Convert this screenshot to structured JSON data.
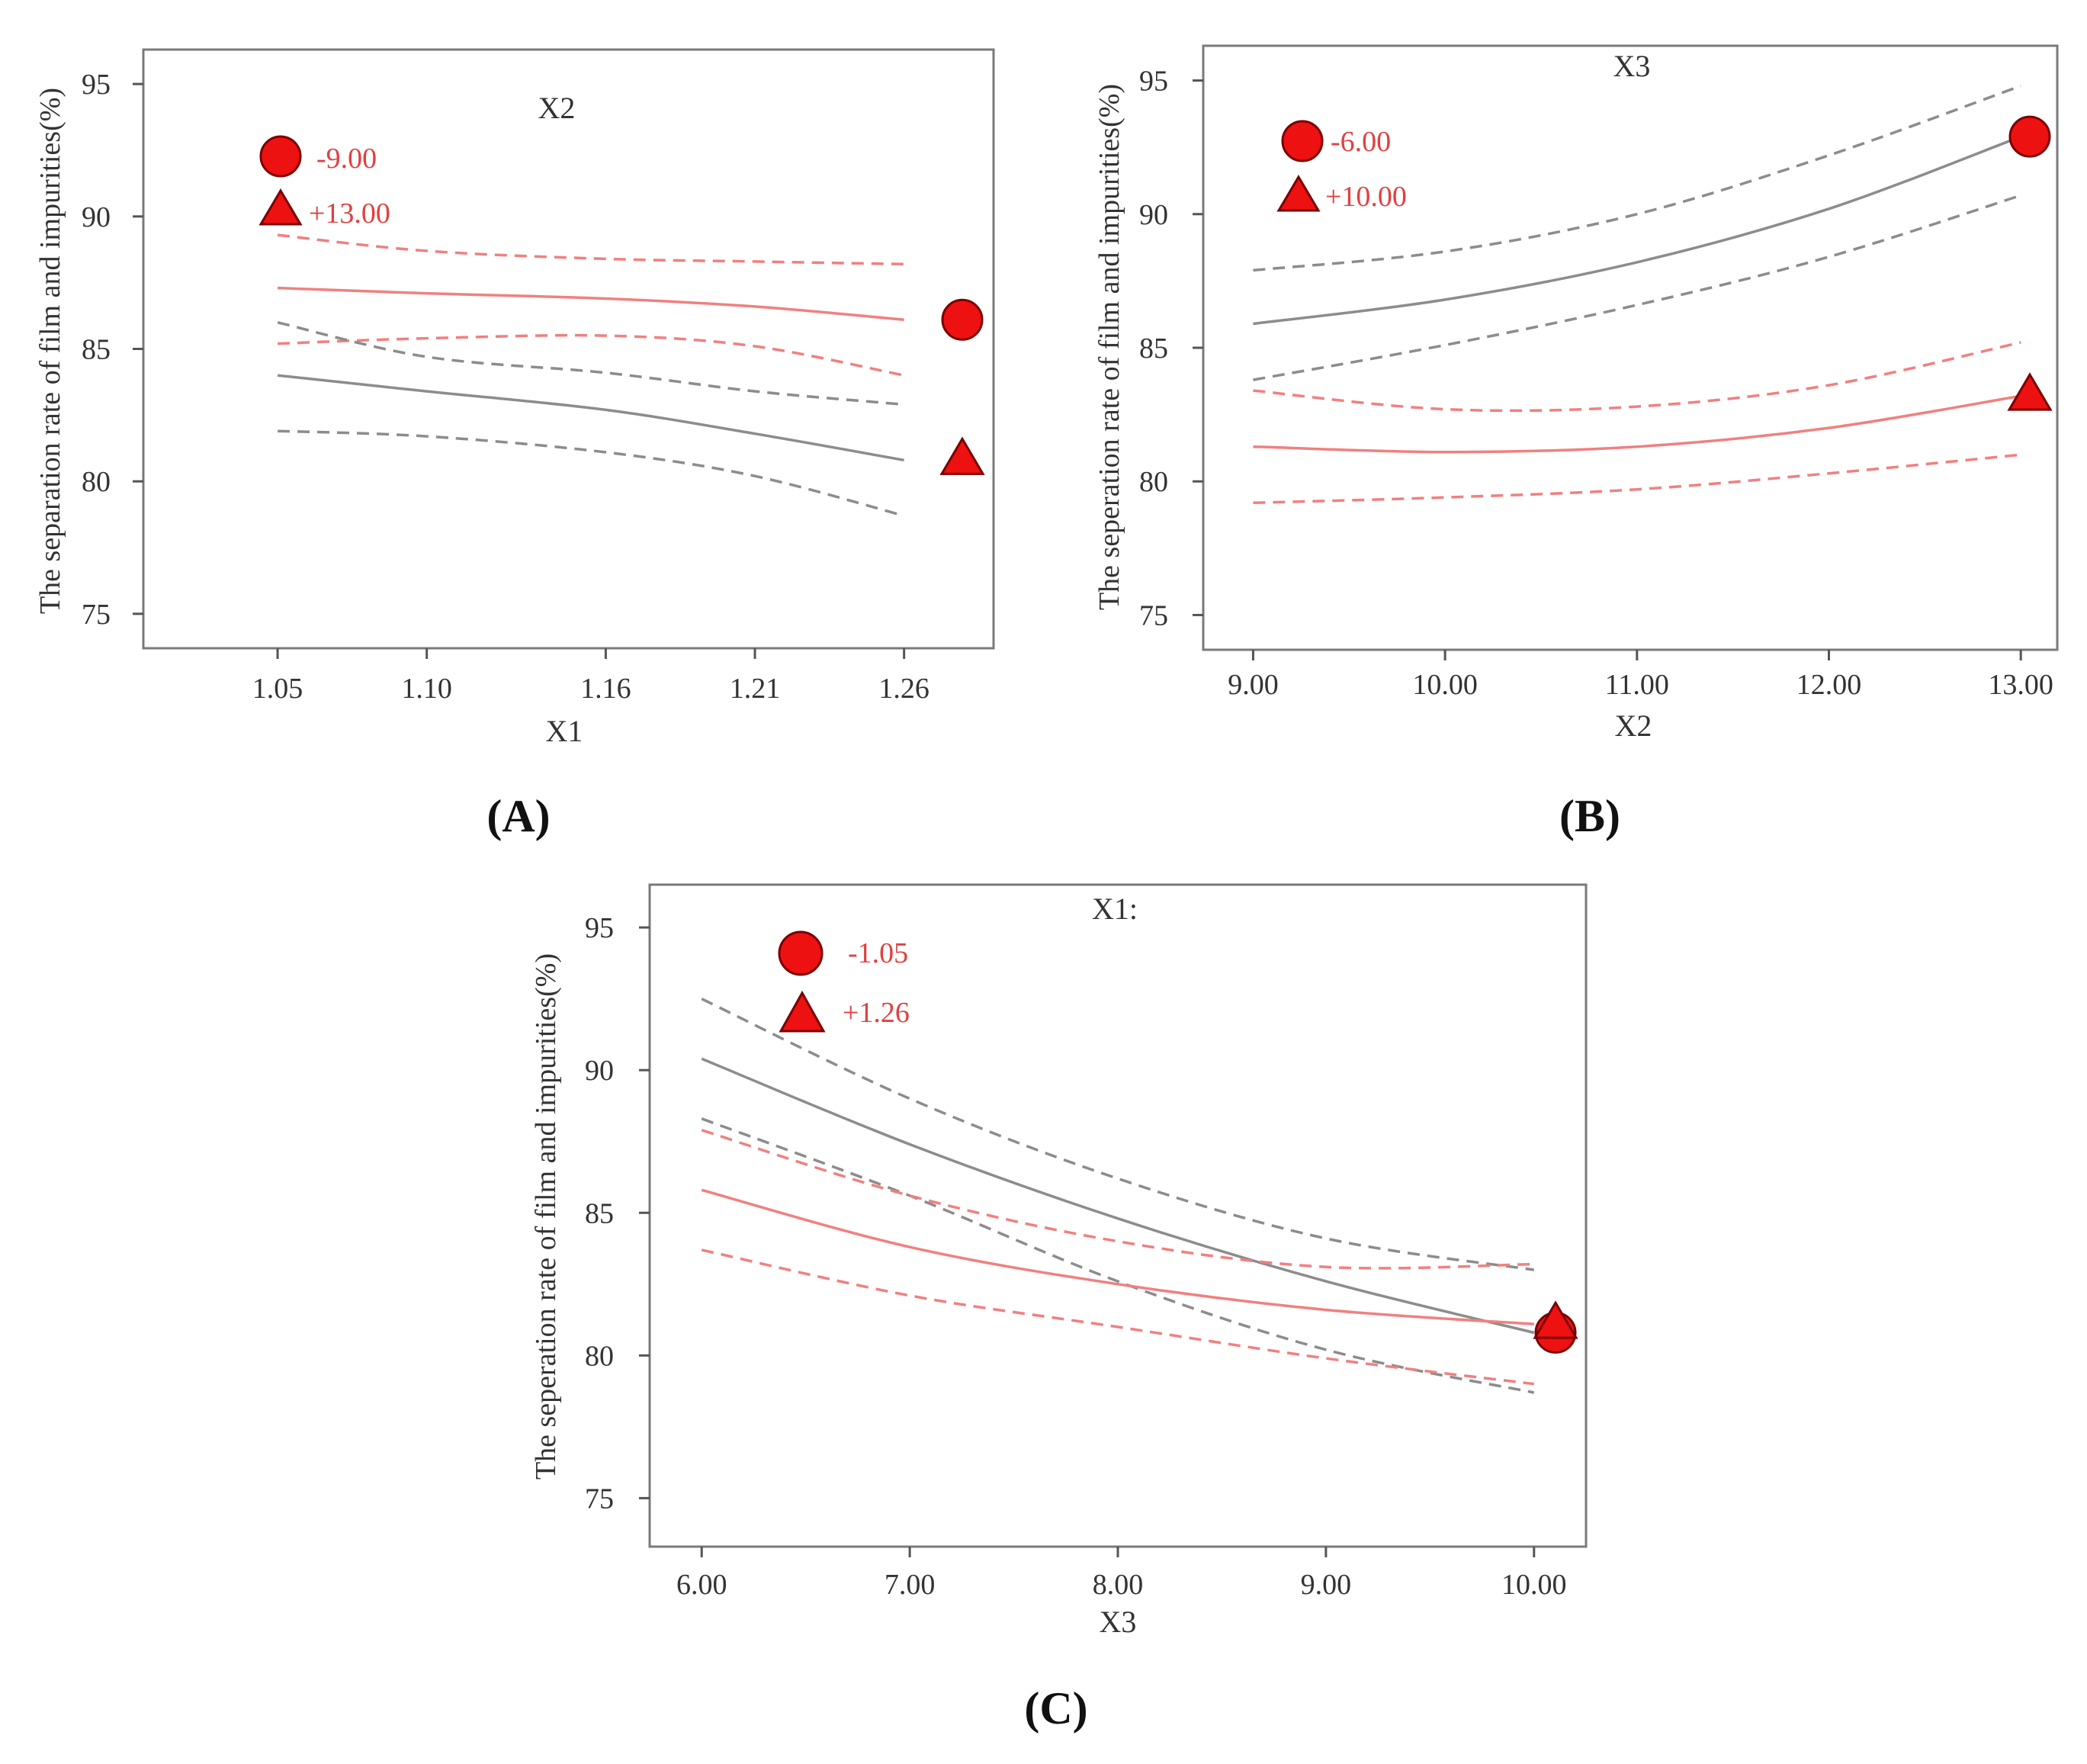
{
  "colors": {
    "grey": "#8c8c8c",
    "red": "#f08080",
    "marker": "#ee1111",
    "legend_text": "#e04040"
  },
  "chart_data": [
    {
      "panel_label": "(A)",
      "type": "line",
      "title": "X2",
      "xlabel": "X1",
      "ylabel": "The separation rate of film and impurities(%)",
      "xlim": [
        1.005,
        1.29
      ],
      "ylim": [
        73.7,
        96.3
      ],
      "xticks": [
        1.05,
        1.1,
        1.16,
        1.21,
        1.26
      ],
      "xtick_labels": [
        "1.05",
        "1.10",
        "1.16",
        "1.21",
        "1.26"
      ],
      "yticks": [
        75,
        80,
        85,
        90,
        95
      ],
      "ytick_labels": [
        "75",
        "80",
        "85",
        "90",
        "95"
      ],
      "legend": [
        {
          "marker": "circle",
          "label": "-9.00",
          "color": "#ee1111"
        },
        {
          "marker": "triangle",
          "label": "+13.00",
          "color": "#ee1111"
        }
      ],
      "series": [
        {
          "name": "-9.00",
          "color": "red",
          "end_marker": "circle",
          "x": [
            1.05,
            1.1,
            1.16,
            1.21,
            1.26
          ],
          "mean": [
            87.3,
            87.1,
            86.9,
            86.6,
            86.1
          ],
          "upper": [
            89.3,
            88.7,
            88.4,
            88.3,
            88.2
          ],
          "lower": [
            85.2,
            85.4,
            85.5,
            85.1,
            84.0
          ]
        },
        {
          "name": "+13.00",
          "color": "grey",
          "end_marker": "triangle",
          "x": [
            1.05,
            1.1,
            1.16,
            1.21,
            1.26
          ],
          "mean": [
            84.0,
            83.4,
            82.7,
            81.8,
            80.8
          ],
          "upper": [
            86.0,
            84.7,
            84.1,
            83.4,
            82.9
          ],
          "lower": [
            81.9,
            81.7,
            81.1,
            80.2,
            78.7
          ]
        }
      ]
    },
    {
      "panel_label": "(B)",
      "type": "line",
      "title": "X3",
      "xlabel": "X2",
      "ylabel": "The seperation rate of film and impurities(%)",
      "xlim": [
        8.74,
        13.19
      ],
      "ylim": [
        73.7,
        96.3
      ],
      "xticks": [
        9,
        10,
        11,
        12,
        13
      ],
      "xtick_labels": [
        "9.00",
        "10.00",
        "11.00",
        "12.00",
        "13.00"
      ],
      "yticks": [
        75,
        80,
        85,
        90,
        95
      ],
      "ytick_labels": [
        "75",
        "80",
        "85",
        "90",
        "95"
      ],
      "legend": [
        {
          "marker": "circle",
          "label": "-6.00",
          "color": "#ee1111"
        },
        {
          "marker": "triangle",
          "label": "+10.00",
          "color": "#ee1111"
        }
      ],
      "series": [
        {
          "name": "-6.00",
          "color": "grey",
          "end_marker": "circle",
          "x": [
            9,
            10,
            11,
            12,
            13
          ],
          "mean": [
            85.9,
            86.8,
            88.2,
            90.2,
            92.9
          ],
          "upper": [
            87.9,
            88.6,
            90.0,
            92.2,
            94.8
          ],
          "lower": [
            83.8,
            85.1,
            86.6,
            88.4,
            90.7
          ]
        },
        {
          "name": "+10.00",
          "color": "red",
          "end_marker": "triangle",
          "x": [
            9,
            10,
            11,
            12,
            13
          ],
          "mean": [
            81.3,
            81.1,
            81.3,
            82.0,
            83.2
          ],
          "upper": [
            83.4,
            82.7,
            82.8,
            83.6,
            85.2
          ],
          "lower": [
            79.2,
            79.4,
            79.7,
            80.3,
            81.0
          ]
        }
      ]
    },
    {
      "panel_label": "(C)",
      "type": "line",
      "title": "X1:",
      "xlabel": "X3",
      "ylabel": "The seperation rate of film and impurities(%)",
      "xlim": [
        5.75,
        10.25
      ],
      "ylim": [
        73.3,
        96.5
      ],
      "xticks": [
        6,
        7,
        8,
        9,
        10
      ],
      "xtick_labels": [
        "6.00",
        "7.00",
        "8.00",
        "9.00",
        "10.00"
      ],
      "yticks": [
        75,
        80,
        85,
        90,
        95
      ],
      "ytick_labels": [
        "75",
        "80",
        "85",
        "90",
        "95"
      ],
      "legend": [
        {
          "marker": "circle",
          "label": "-1.05",
          "color": "#ee1111"
        },
        {
          "marker": "triangle",
          "label": "+1.26",
          "color": "#ee1111"
        }
      ],
      "series": [
        {
          "name": "-1.05",
          "color": "grey",
          "end_marker": "circle",
          "x": [
            6,
            7,
            8,
            9,
            10
          ],
          "mean": [
            90.4,
            87.4,
            84.8,
            82.6,
            80.8
          ],
          "upper": [
            92.5,
            89.0,
            86.2,
            84.1,
            83.0
          ],
          "lower": [
            88.3,
            85.6,
            82.6,
            80.2,
            78.7
          ]
        },
        {
          "name": "+1.26",
          "color": "red",
          "end_marker": "triangle",
          "x": [
            6,
            7,
            8,
            9,
            10
          ],
          "mean": [
            85.8,
            83.8,
            82.5,
            81.6,
            81.1
          ],
          "upper": [
            87.9,
            85.6,
            84.0,
            83.1,
            83.2
          ],
          "lower": [
            83.7,
            82.1,
            81.0,
            79.9,
            79.0
          ]
        }
      ]
    }
  ]
}
